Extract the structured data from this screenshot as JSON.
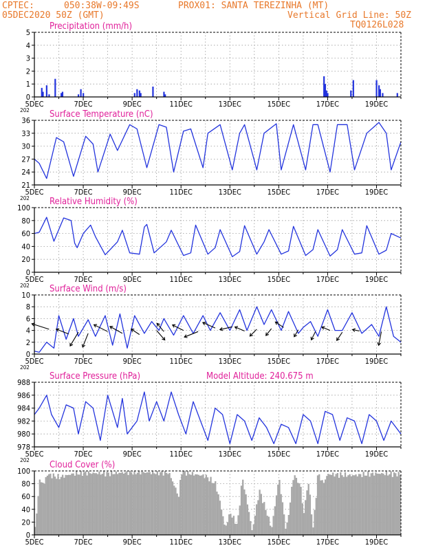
{
  "header": {
    "source": "CPTEC:",
    "coords": "050:38W-09:49S",
    "station": "PROX01: SANTA TEREZINHA (MT)",
    "date": "05DEC2020 50Z (GMT)",
    "grid_note": "Vertical Grid Line: 50Z",
    "model_code": "TQ0126L028"
  },
  "x_ticks": [
    "5DEC",
    "7DEC",
    "9DEC",
    "11DEC",
    "13DEC",
    "15DEC",
    "17DEC",
    "19DEC"
  ],
  "year_fragment": "202",
  "colors": {
    "header": "#e8782a",
    "title": "#e0209a",
    "line": "#2233dd",
    "cloud": "#a8a8a8",
    "arrow": "#000000"
  },
  "chart_data": [
    {
      "type": "bar",
      "title": "Precipitation (mm/h)",
      "ylim": [
        0,
        5
      ],
      "yticks": [
        0,
        1,
        2,
        3,
        4,
        5
      ],
      "bars": [
        {
          "day": 0.3,
          "value": 0.7
        },
        {
          "day": 0.35,
          "value": 0.4
        },
        {
          "day": 0.5,
          "value": 0.9
        },
        {
          "day": 0.6,
          "value": 0.2
        },
        {
          "day": 0.85,
          "value": 1.4
        },
        {
          "day": 1.1,
          "value": 0.3
        },
        {
          "day": 1.15,
          "value": 0.4
        },
        {
          "day": 1.8,
          "value": 0.2
        },
        {
          "day": 1.9,
          "value": 0.6
        },
        {
          "day": 2.0,
          "value": 0.3
        },
        {
          "day": 4.1,
          "value": 0.3
        },
        {
          "day": 4.2,
          "value": 0.6
        },
        {
          "day": 4.3,
          "value": 0.5
        },
        {
          "day": 4.35,
          "value": 0.3
        },
        {
          "day": 4.85,
          "value": 0.8
        },
        {
          "day": 5.3,
          "value": 0.4
        },
        {
          "day": 5.35,
          "value": 0.2
        },
        {
          "day": 11.85,
          "value": 1.6
        },
        {
          "day": 11.9,
          "value": 1.0
        },
        {
          "day": 11.95,
          "value": 0.5
        },
        {
          "day": 12.0,
          "value": 0.3
        },
        {
          "day": 12.95,
          "value": 0.5
        },
        {
          "day": 13.05,
          "value": 1.3
        },
        {
          "day": 14.0,
          "value": 1.3
        },
        {
          "day": 14.1,
          "value": 0.9
        },
        {
          "day": 14.15,
          "value": 0.6
        },
        {
          "day": 14.25,
          "value": 0.3
        },
        {
          "day": 14.85,
          "value": 0.3
        }
      ]
    },
    {
      "type": "line",
      "title": "Surface Temperature (nC)",
      "ylim": [
        21,
        36
      ],
      "yticks": [
        21,
        24,
        27,
        30,
        33,
        36
      ],
      "x": [
        0,
        0.2,
        0.5,
        0.9,
        1.2,
        1.6,
        2.1,
        2.4,
        2.6,
        3.1,
        3.4,
        3.9,
        4.2,
        4.6,
        5.1,
        5.4,
        5.7,
        6.1,
        6.4,
        6.9,
        7.1,
        7.6,
        8.1,
        8.4,
        8.6,
        9.1,
        9.4,
        9.9,
        10.1,
        10.6,
        11.1,
        11.4,
        11.6,
        12.1,
        12.4,
        12.8,
        13.1,
        13.6,
        14.1,
        14.4,
        14.6,
        15.0
      ],
      "y": [
        27,
        26,
        22.5,
        32,
        31,
        23,
        32.3,
        30.5,
        24,
        32.8,
        29,
        35,
        34,
        25,
        35,
        34.4,
        24,
        33.5,
        34,
        25,
        33,
        35,
        24.5,
        33,
        35,
        24.5,
        33,
        35.2,
        24.5,
        35,
        24.5,
        35,
        35,
        24,
        35,
        35,
        24.5,
        33,
        35.5,
        33,
        24.5,
        31
      ]
    },
    {
      "type": "line",
      "title": "Relative Humidity (%)",
      "ylim": [
        0,
        100
      ],
      "yticks": [
        0,
        20,
        40,
        60,
        80,
        100
      ],
      "x": [
        0,
        0.2,
        0.5,
        0.8,
        1.2,
        1.5,
        1.65,
        1.75,
        2.0,
        2.3,
        2.5,
        2.9,
        3.4,
        3.6,
        3.9,
        4.3,
        4.5,
        4.6,
        4.9,
        5.4,
        5.6,
        6.1,
        6.4,
        6.6,
        7.1,
        7.4,
        7.6,
        8.1,
        8.4,
        8.6,
        9.1,
        9.4,
        9.6,
        10.1,
        10.4,
        10.6,
        11.1,
        11.4,
        11.6,
        12.1,
        12.4,
        12.6,
        13.1,
        13.4,
        13.6,
        14.1,
        14.4,
        14.6,
        15.0
      ],
      "y": [
        60,
        62,
        85,
        48,
        84,
        80,
        45,
        38,
        60,
        73,
        55,
        27,
        47,
        65,
        30,
        28,
        70,
        74,
        30,
        47,
        65,
        26,
        30,
        73,
        28,
        38,
        66,
        24,
        32,
        72,
        28,
        47,
        66,
        28,
        33,
        71,
        26,
        35,
        66,
        25,
        35,
        66,
        28,
        30,
        72,
        28,
        34,
        60,
        53
      ]
    },
    {
      "type": "line",
      "title": "Surface Wind (m/s)",
      "ylim": [
        0,
        10
      ],
      "yticks": [
        0,
        2,
        4,
        6,
        8,
        10
      ],
      "x": [
        0,
        0.2,
        0.5,
        0.8,
        1.0,
        1.3,
        1.6,
        1.8,
        2.2,
        2.5,
        2.9,
        3.2,
        3.5,
        3.8,
        4.1,
        4.5,
        4.8,
        5.1,
        5.3,
        5.7,
        6.1,
        6.5,
        6.9,
        7.2,
        7.6,
        8.0,
        8.4,
        8.7,
        9.1,
        9.4,
        9.7,
        10.1,
        10.4,
        10.8,
        11.0,
        11.3,
        11.6,
        12.0,
        12.3,
        12.6,
        13.0,
        13.4,
        13.8,
        14.1,
        14.4,
        14.7,
        15.0
      ],
      "y": [
        0.5,
        0.3,
        2,
        1,
        6.5,
        2.5,
        6,
        3,
        5.8,
        3,
        6.5,
        1.5,
        6.8,
        1,
        6.5,
        3.5,
        5.5,
        4,
        6,
        3.2,
        6.5,
        3.5,
        6.5,
        4,
        7,
        4,
        7.5,
        4,
        8,
        5,
        7.5,
        4,
        7.2,
        3.5,
        4.5,
        5.5,
        3,
        7.5,
        4,
        4,
        7,
        3.5,
        5,
        3,
        8,
        3,
        2
      ]
    },
    {
      "type": "line",
      "title": "Surface Pressure (hPa)",
      "annotation": "Model Altitude: 240.675 m",
      "ylim": [
        978,
        988
      ],
      "yticks": [
        978,
        980,
        982,
        984,
        986,
        988
      ],
      "x": [
        0,
        0.2,
        0.5,
        0.7,
        1.0,
        1.3,
        1.6,
        1.8,
        2.1,
        2.4,
        2.7,
        3.0,
        3.4,
        3.6,
        3.8,
        4.2,
        4.5,
        4.7,
        5.0,
        5.3,
        5.6,
        5.9,
        6.2,
        6.5,
        6.8,
        7.1,
        7.4,
        7.7,
        8.0,
        8.3,
        8.6,
        8.9,
        9.2,
        9.5,
        9.8,
        10.1,
        10.4,
        10.7,
        11.0,
        11.3,
        11.6,
        11.9,
        12.2,
        12.5,
        12.8,
        13.1,
        13.4,
        13.7,
        14.0,
        14.3,
        14.6,
        15.0
      ],
      "y": [
        983,
        984,
        986,
        983,
        981,
        984.5,
        984,
        980,
        985,
        984,
        979,
        986,
        981,
        985.5,
        980,
        982,
        986.5,
        982,
        985,
        982,
        986.5,
        983,
        980,
        985,
        982,
        979,
        984,
        983,
        978.5,
        983,
        982,
        979,
        982.5,
        981,
        978.5,
        981.5,
        981,
        978.5,
        983,
        982,
        978.5,
        983.5,
        983,
        979,
        982.5,
        982,
        978.5,
        983,
        982,
        979,
        982,
        980
      ]
    },
    {
      "type": "bar",
      "title": "Cloud Cover (%)",
      "ylim": [
        0,
        100
      ],
      "yticks": [
        0,
        20,
        40,
        60,
        80,
        100
      ],
      "profile": {
        "x": [
          0,
          0.2,
          0.4,
          0.5,
          1.0,
          1.5,
          2.0,
          3.0,
          4.0,
          5.5,
          5.9,
          6.0,
          6.5,
          7.0,
          7.4,
          7.6,
          7.8,
          8.0,
          8.3,
          8.5,
          8.8,
          8.9,
          9.2,
          9.5,
          9.7,
          10.0,
          10.3,
          10.6,
          10.9,
          11.0,
          11.2,
          11.4,
          11.6,
          11.8,
          12.0,
          13.0,
          14.0,
          15.0
        ],
        "y": [
          0,
          85,
          80,
          95,
          90,
          95,
          97,
          96,
          98,
          97,
          60,
          99,
          95,
          92,
          80,
          50,
          10,
          35,
          15,
          90,
          30,
          5,
          70,
          35,
          10,
          90,
          5,
          95,
          75,
          30,
          85,
          10,
          98,
          80,
          95,
          93,
          96,
          95
        ]
      }
    }
  ]
}
